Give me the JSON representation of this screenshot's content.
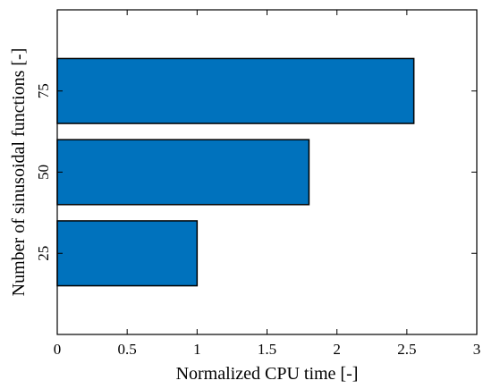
{
  "chart_data": {
    "type": "bar",
    "orientation": "horizontal",
    "categories": [
      "25",
      "50",
      "75"
    ],
    "values": [
      1.0,
      1.8,
      2.55
    ],
    "xlabel": "Normalized CPU time [-]",
    "ylabel": "Number of sinusoidal functions  [-]",
    "xlim": [
      0,
      3
    ],
    "xticks": [
      "0",
      "0.5",
      "1",
      "1.5",
      "2",
      "2.5",
      "3"
    ],
    "grid": false,
    "bar_color": "#0072BD",
    "bar_edge_color": "#000000"
  }
}
